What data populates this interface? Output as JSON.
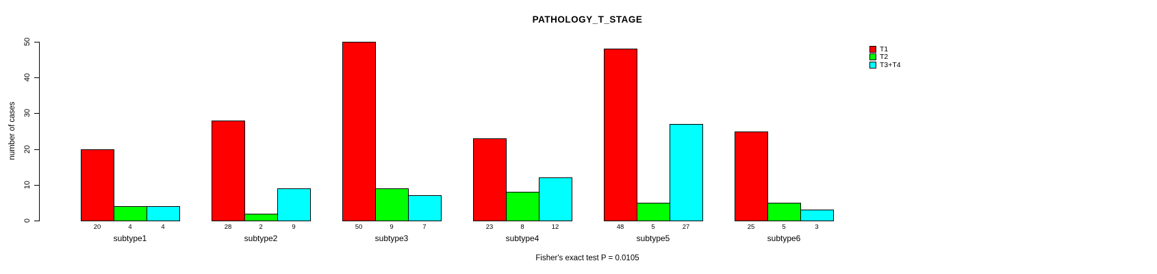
{
  "chart_data": {
    "type": "bar",
    "title": "PATHOLOGY_T_STAGE",
    "ylabel": "number of cases",
    "xlabel": "",
    "annotation": "Fisher's exact test P = 0.0105",
    "categories": [
      "subtype1",
      "subtype2",
      "subtype3",
      "subtype4",
      "subtype5",
      "subtype6"
    ],
    "series": [
      {
        "name": "T1",
        "color": "#FF0000",
        "values": [
          20,
          28,
          50,
          23,
          48,
          25
        ]
      },
      {
        "name": "T2",
        "color": "#00FF00",
        "values": [
          4,
          2,
          9,
          8,
          5,
          5
        ]
      },
      {
        "name": "T3+T4",
        "color": "#00FFFF",
        "values": [
          4,
          9,
          7,
          12,
          27,
          3
        ]
      }
    ],
    "bar_value_labels_shown": true,
    "ylim": [
      0,
      50
    ],
    "yticks": [
      0,
      10,
      20,
      30,
      40,
      50
    ],
    "grid": "off",
    "legend_position": "right",
    "axis_color": "#000000",
    "background_color": "#FFFFFF"
  }
}
